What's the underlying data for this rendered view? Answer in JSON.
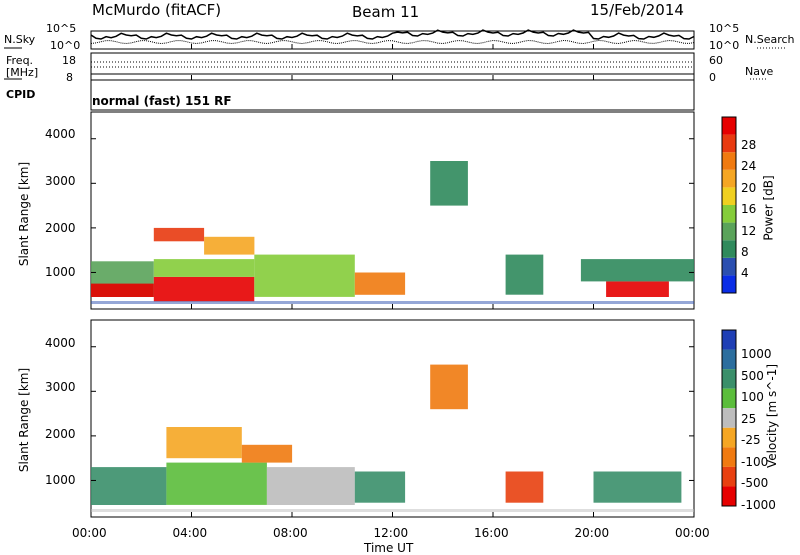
{
  "header": {
    "station": "McMurdo (fitACF)",
    "beam": "Beam 11",
    "date": "15/Feb/2014"
  },
  "noise_panel": {
    "left_label": "N.Sky",
    "right_label": "N.Search",
    "left_ticks": [
      "10^5",
      "10^0"
    ],
    "right_ticks": [
      "10^5",
      "10^0"
    ]
  },
  "freq_panel": {
    "left_label_line1": "Freq.",
    "left_label_line2": "[MHz]",
    "right_label": "Nave",
    "left_ticks": [
      "18",
      "8"
    ],
    "right_ticks": [
      "60",
      "0"
    ]
  },
  "cpid_panel": {
    "label": "CPID",
    "text": "normal (fast) 151 RF"
  },
  "power_panel": {
    "ylabel": "Slant Range [km]",
    "yticks": [
      "4000",
      "3000",
      "2000",
      "1000"
    ],
    "colorbar_label": "Power [dB]",
    "colorbar_ticks": [
      "28",
      "24",
      "20",
      "16",
      "12",
      "8",
      "4"
    ],
    "colors": [
      "#0a2de6",
      "#2b4fb0",
      "#2f8a5c",
      "#5aa35a",
      "#85cc3a",
      "#f0d020",
      "#f5a623",
      "#f07a10",
      "#e83a10",
      "#e60000"
    ]
  },
  "velocity_panel": {
    "ylabel": "Slant Range [km]",
    "yticks": [
      "4000",
      "3000",
      "2000",
      "1000"
    ],
    "colorbar_label": "Velocity [m s^-1]",
    "colorbar_ticks": [
      "1000",
      "500",
      "100",
      "25",
      "-25",
      "-100",
      "-500",
      "-1000"
    ],
    "colors": [
      "#1f3fb5",
      "#2c6e9e",
      "#3a8f6a",
      "#5bbd3b",
      "#bdbdbd",
      "#f5a623",
      "#f07a10",
      "#e84010",
      "#e60000"
    ]
  },
  "xaxis": {
    "label": "Time UT",
    "ticks": [
      "00:00",
      "04:00",
      "08:00",
      "12:00",
      "16:00",
      "20:00",
      "00:00"
    ]
  },
  "chart_data": [
    {
      "type": "heatmap",
      "title": "Power",
      "xlabel": "Time UT",
      "ylabel": "Slant Range [km]",
      "xlim": [
        0,
        24
      ],
      "ylim": [
        180,
        4600
      ],
      "colorbar": "Power [dB]",
      "clim": [
        0,
        30
      ],
      "regions": [
        {
          "t0": 0.0,
          "t1": 2.5,
          "r0": 450,
          "r1": 1250,
          "v": 10
        },
        {
          "t0": 0.0,
          "t1": 2.5,
          "r0": 450,
          "r1": 750,
          "v": 28
        },
        {
          "t0": 2.5,
          "t1": 6.5,
          "r0": 350,
          "r1": 900,
          "v": 30
        },
        {
          "t0": 2.5,
          "t1": 6.5,
          "r0": 900,
          "r1": 1300,
          "v": 12
        },
        {
          "t0": 6.5,
          "t1": 10.5,
          "r0": 450,
          "r1": 1400,
          "v": 14
        },
        {
          "t0": 10.5,
          "t1": 12.5,
          "r0": 500,
          "r1": 1000,
          "v": 22
        },
        {
          "t0": 2.5,
          "t1": 4.5,
          "r0": 1700,
          "r1": 2000,
          "v": 26
        },
        {
          "t0": 4.5,
          "t1": 6.5,
          "r0": 1400,
          "r1": 1800,
          "v": 18
        },
        {
          "t0": 13.5,
          "t1": 15.0,
          "r0": 2500,
          "r1": 3500,
          "v": 6
        },
        {
          "t0": 16.5,
          "t1": 18.0,
          "r0": 500,
          "r1": 1400,
          "v": 8
        },
        {
          "t0": 20.5,
          "t1": 23.0,
          "r0": 450,
          "r1": 800,
          "v": 28
        },
        {
          "t0": 19.5,
          "t1": 24.0,
          "r0": 800,
          "r1": 1300,
          "v": 8
        }
      ]
    },
    {
      "type": "heatmap",
      "title": "Velocity",
      "xlabel": "Time UT",
      "ylabel": "Slant Range [km]",
      "xlim": [
        0,
        24
      ],
      "ylim": [
        180,
        4600
      ],
      "colorbar": "Velocity [m s^-1]",
      "clim": [
        -1000,
        1000
      ],
      "regions": [
        {
          "t0": 0.0,
          "t1": 3.0,
          "r0": 450,
          "r1": 1300,
          "v": 100
        },
        {
          "t0": 3.0,
          "t1": 7.0,
          "r0": 450,
          "r1": 1400,
          "v": 50
        },
        {
          "t0": 7.0,
          "t1": 10.5,
          "r0": 450,
          "r1": 1300,
          "v": 25
        },
        {
          "t0": 10.5,
          "t1": 12.5,
          "r0": 500,
          "r1": 1200,
          "v": 100
        },
        {
          "t0": 3.0,
          "t1": 6.0,
          "r0": 1500,
          "r1": 2200,
          "v": -50
        },
        {
          "t0": 6.0,
          "t1": 8.0,
          "r0": 1400,
          "r1": 1800,
          "v": -150
        },
        {
          "t0": 13.5,
          "t1": 15.0,
          "r0": 2600,
          "r1": 3600,
          "v": -150
        },
        {
          "t0": 16.5,
          "t1": 18.0,
          "r0": 500,
          "r1": 1200,
          "v": -400
        },
        {
          "t0": 20.0,
          "t1": 23.5,
          "r0": 500,
          "r1": 1200,
          "v": 200
        }
      ]
    }
  ]
}
